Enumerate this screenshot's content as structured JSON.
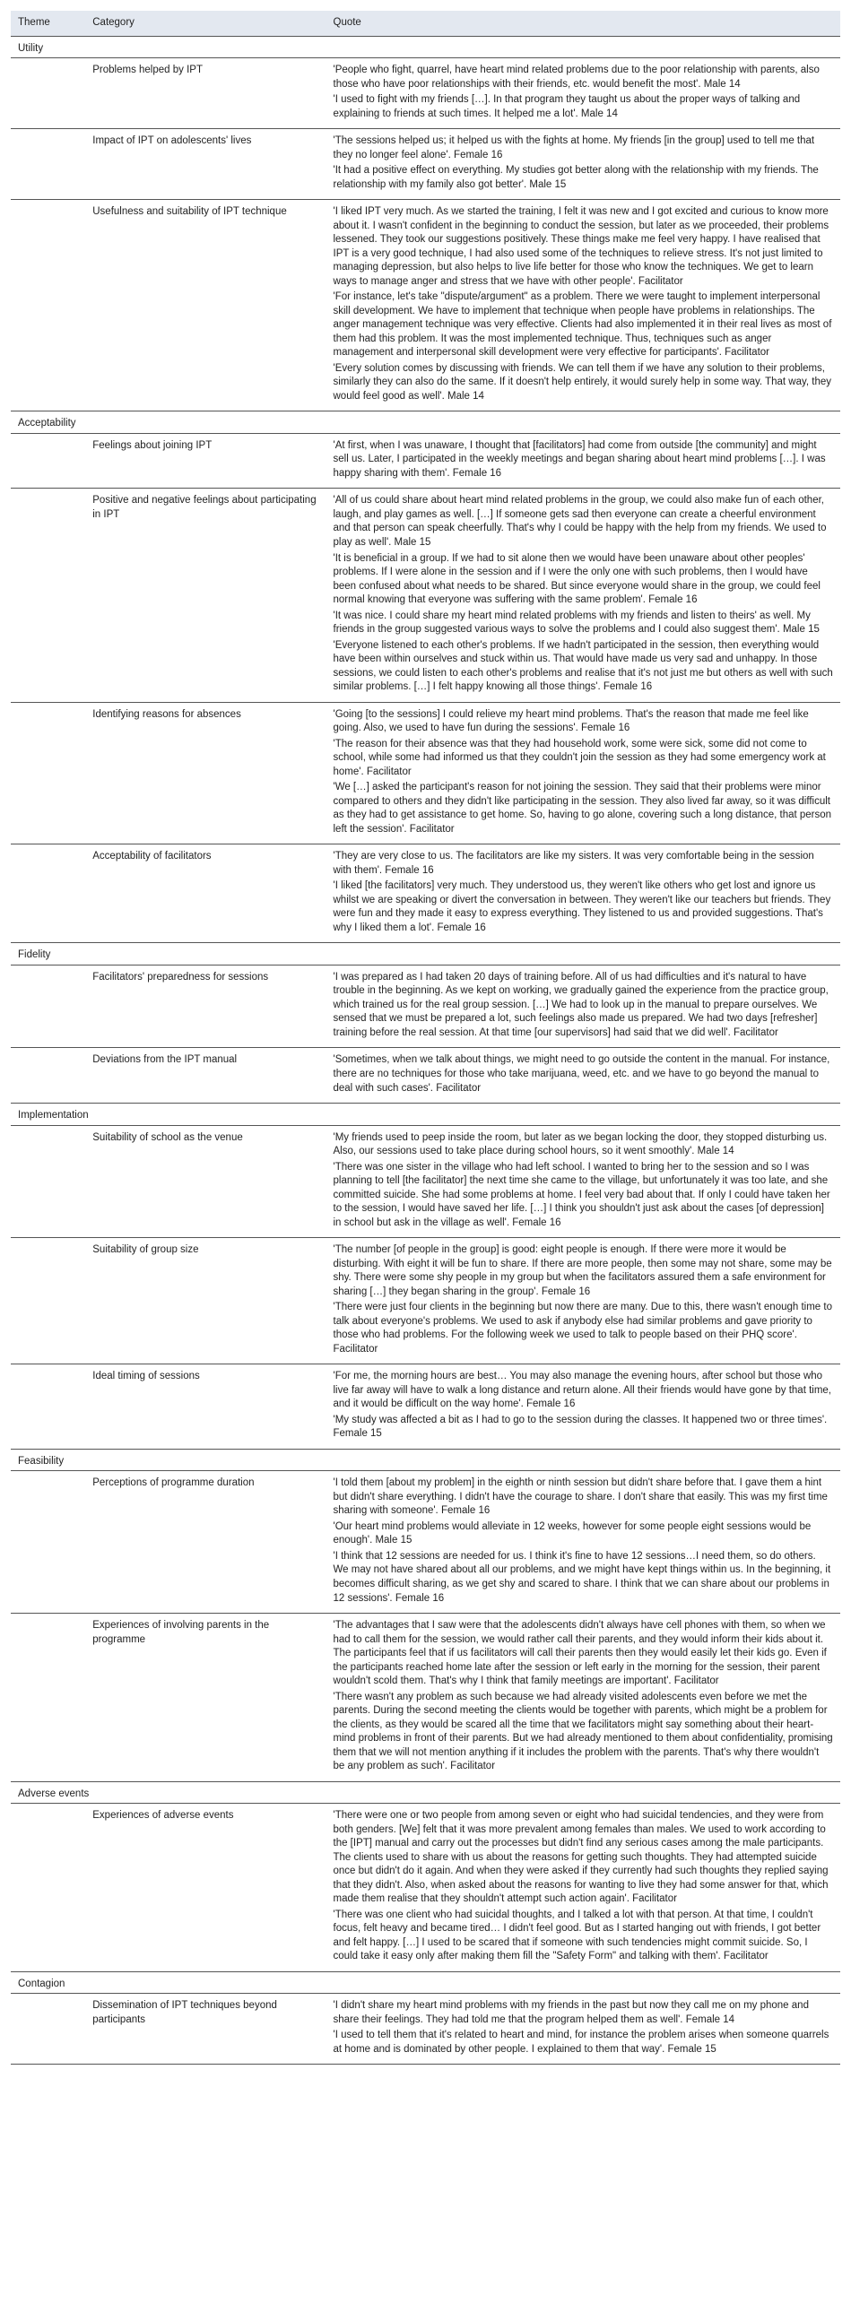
{
  "headers": {
    "theme": "Theme",
    "category": "Category",
    "quote": "Quote"
  },
  "themes": [
    {
      "name": "Utility",
      "rows": [
        {
          "category": "Problems helped by IPT",
          "quotes": [
            "'People who fight, quarrel, have heart mind related problems due to the poor relationship with parents, also those who have poor relationships with their friends, etc. would benefit the most'. Male 14",
            "'I used to fight with my friends […]. In that program they taught us about the proper ways of talking and explaining to friends at such times. It helped me a lot'. Male 14"
          ]
        },
        {
          "category": "Impact of IPT on adolescents' lives",
          "quotes": [
            "'The sessions helped us; it helped us with the fights at home. My friends [in the group] used to tell me that they no longer feel alone'. Female 16",
            "'It had a positive effect on everything. My studies got better along with the relationship with my friends. The relationship with my family also got better'. Male 15"
          ]
        },
        {
          "category": "Usefulness and suitability of IPT technique",
          "quotes": [
            "'I liked IPT very much. As we started the training, I felt it was new and I got excited and curious to know more about it. I wasn't confident in the beginning to conduct the session, but later as we proceeded, their problems lessened. They took our suggestions positively. These things make me feel very happy. I have realised that IPT is a very good technique, I had also used some of the techniques to relieve stress. It's not just limited to managing depression, but also helps to live life better for those who know the techniques. We get to learn ways to manage anger and stress that we have with other people'. Facilitator",
            "'For instance, let's take \"dispute/argument\" as a problem. There we were taught to implement interpersonal skill development. We have to implement that technique when people have problems in relationships. The anger management technique was very effective. Clients had also implemented it in their real lives as most of them had this problem. It was the most implemented technique. Thus, techniques such as anger management and interpersonal skill development were very effective for participants'. Facilitator",
            "'Every solution comes by discussing with friends. We can tell them if we have any solution to their problems, similarly they can also do the same. If it doesn't help entirely, it would surely help in some way. That way, they would feel good as well'. Male 14"
          ]
        }
      ]
    },
    {
      "name": "Acceptability",
      "rows": [
        {
          "category": "Feelings about joining IPT",
          "quotes": [
            "'At first, when I was unaware, I thought that [facilitators] had come from outside [the community] and might sell us. Later, I participated in the weekly meetings and began sharing about heart mind problems […]. I was happy sharing with them'. Female 16"
          ]
        },
        {
          "category": "Positive and negative feelings about participating in IPT",
          "quotes": [
            "'All of us could share about heart mind related problems in the group, we could also make fun of each other, laugh, and play games as well. […] If someone gets sad then everyone can create a cheerful environment and that person can speak cheerfully. That's why I could be happy with the help from my friends. We used to play as well'. Male 15",
            "'It is beneficial in a group. If we had to sit alone then we would have been unaware about other peoples' problems. If I were alone in the session and if I were the only one with such problems, then I would have been confused about what needs to be shared. But since everyone would share in the group, we could feel normal knowing that everyone was suffering with the same problem'. Female 16",
            "'It was nice. I could share my heart mind related problems with my friends and listen to theirs' as well. My friends in the group suggested various ways to solve the problems and I could also suggest them'. Male 15",
            "'Everyone listened to each other's problems. If we hadn't participated in the session, then everything would have been within ourselves and stuck within us. That would have made us very sad and unhappy. In those sessions, we could listen to each other's problems and realise that it's not just me but others as well with such similar problems. […] I felt happy knowing all those things'. Female 16"
          ]
        },
        {
          "category": "Identifying reasons for absences",
          "quotes": [
            "'Going [to the sessions] I could relieve my heart mind problems. That's the reason that made me feel like going. Also, we used to have fun during the sessions'. Female 16",
            "'The reason for their absence was that they had household work, some were sick, some did not come to school, while some had informed us that they couldn't join the session as they had some emergency work at home'. Facilitator",
            "'We […] asked the participant's reason for not joining the session. They said that their problems were minor compared to others and they didn't like participating in the session. They also lived far away, so it was difficult as they had to get assistance to get home. So, having to go alone, covering such a long distance, that person left the session'. Facilitator"
          ]
        },
        {
          "category": "Acceptability of facilitators",
          "quotes": [
            "'They are very close to us. The facilitators are like my sisters. It was very comfortable being in the session with them'. Female 16",
            "'I liked [the facilitators] very much. They understood us, they weren't like others who get lost and ignore us whilst we are speaking or divert the conversation in between. They weren't like our teachers but friends. They were fun and they made it easy to express everything. They listened to us and provided suggestions. That's why I liked them a lot'. Female 16"
          ]
        }
      ]
    },
    {
      "name": "Fidelity",
      "rows": [
        {
          "category": "Facilitators' preparedness for sessions",
          "quotes": [
            "'I was prepared as I had taken 20 days of training before. All of us had difficulties and it's natural to have trouble in the beginning. As we kept on working, we gradually gained the experience from the practice group, which trained us for the real group session. […] We had to look up in the manual to prepare ourselves. We sensed that we must be prepared a lot, such feelings also made us prepared. We had two days [refresher] training before the real session. At that time [our supervisors] had said that we did well'. Facilitator"
          ]
        },
        {
          "category": "Deviations from the IPT manual",
          "quotes": [
            "'Sometimes, when we talk about things, we might need to go outside the content in the manual. For instance, there are no techniques for those who take marijuana, weed, etc. and we have to go beyond the manual to deal with such cases'. Facilitator"
          ]
        }
      ]
    },
    {
      "name": "Implementation",
      "rows": [
        {
          "category": "Suitability of school as the venue",
          "quotes": [
            "'My friends used to peep inside the room, but later as we began locking the door, they stopped disturbing us. Also, our sessions used to take place during school hours, so it went smoothly'. Male 14",
            "'There was one sister in the village who had left school. I wanted to bring her to the session and so I was planning to tell [the facilitator] the next time she came to the village, but unfortunately it was too late, and she committed suicide. She had some problems at home. I feel very bad about that. If only I could have taken her to the session, I would have saved her life. […] I think you shouldn't just ask about the cases [of depression] in school but ask in the village as well'. Female 16"
          ]
        },
        {
          "category": "Suitability of group size",
          "quotes": [
            "'The number [of people in the group] is good: eight people is enough. If there were more it would be disturbing. With eight it will be fun to share. If there are more people, then some may not share, some may be shy. There were some shy people in my group but when the facilitators assured them a safe environment for sharing […] they began sharing in the group'. Female 16",
            "'There were just four clients in the beginning but now there are many. Due to this, there wasn't enough time to talk about everyone's problems. We used to ask if anybody else had similar problems and gave priority to those who had problems. For the following week we used to talk to people based on their PHQ score'. Facilitator"
          ]
        },
        {
          "category": "Ideal timing of sessions",
          "quotes": [
            "'For me, the morning hours are best… You may also manage the evening hours, after school but those who live far away will have to walk a long distance and return alone. All their friends would have gone by that time, and it would be difficult on the way home'. Female 16",
            "'My study was affected a bit as I had to go to the session during the classes. It happened two or three times'. Female 15"
          ]
        }
      ]
    },
    {
      "name": "Feasibility",
      "rows": [
        {
          "category": "Perceptions of programme duration",
          "quotes": [
            "'I told them [about my problem] in the eighth or ninth session but didn't share before that. I gave them a hint but didn't share everything. I didn't have the courage to share. I don't share that easily. This was my first time sharing with someone'. Female 16",
            "'Our heart mind problems would alleviate in 12 weeks, however for some people eight sessions would be enough'. Male 15",
            "'I think that 12 sessions are needed for us. I think it's fine to have 12 sessions…I need them, so do others. We may not have shared about all our problems, and we might have kept things within us. In the beginning, it becomes difficult sharing, as we get shy and scared to share. I think that we can share about our problems in 12 sessions'. Female 16"
          ]
        },
        {
          "category": "Experiences of involving parents in the programme",
          "quotes": [
            "'The advantages that I saw were that the adolescents didn't always have cell phones with them, so when we had to call them for the session, we would rather call their parents, and they would inform their kids about it. The participants feel that if us facilitators will call their parents then they would easily let their kids go. Even if the participants reached home late after the session or left early in the morning for the session, their parent wouldn't scold them. That's why I think that family meetings are important'. Facilitator",
            "'There wasn't any problem as such because we had already visited adolescents even before we met the parents. During the second meeting the clients would be together with parents, which might be a problem for the clients, as they would be scared all the time that we facilitators might say something about their heart-mind problems in front of their parents. But we had already mentioned to them about confidentiality, promising them that we will not mention anything if it includes the problem with the parents. That's why there wouldn't be any problem as such'. Facilitator"
          ]
        }
      ]
    },
    {
      "name": "Adverse events",
      "rows": [
        {
          "category": "Experiences of adverse events",
          "quotes": [
            "'There were one or two people from among seven or eight who had suicidal tendencies, and they were from both genders. [We] felt that it was more prevalent among females than males. We used to work according to the [IPT] manual and carry out the processes but didn't find any serious cases among the male participants. The clients used to share with us about the reasons for getting such thoughts. They had attempted suicide once but didn't do it again. And when they were asked if they currently had such thoughts they replied saying that they didn't. Also, when asked about the reasons for wanting to live they had some answer for that, which made them realise that they shouldn't attempt such action again'. Facilitator",
            "'There was one client who had suicidal thoughts, and I talked a lot with that person. At that time, I couldn't focus, felt heavy and became tired… I didn't feel good. But as I started hanging out with friends, I got better and felt happy. […] I used to be scared that if someone with such tendencies might commit suicide. So, I could take it easy only after making them fill the \"Safety Form\" and talking with them'. Facilitator"
          ]
        }
      ]
    },
    {
      "name": "Contagion",
      "rows": [
        {
          "category": "Dissemination of IPT techniques beyond participants",
          "quotes": [
            "'I didn't share my heart mind problems with my friends in the past but now they call me on my phone and share their feelings. They had told me that the program helped them as well'. Female 14",
            "'I used to tell them that it's related to heart and mind, for instance the problem arises when someone quarrels at home and is dominated by other people. I explained to them that way'. Female 15"
          ]
        }
      ]
    }
  ]
}
